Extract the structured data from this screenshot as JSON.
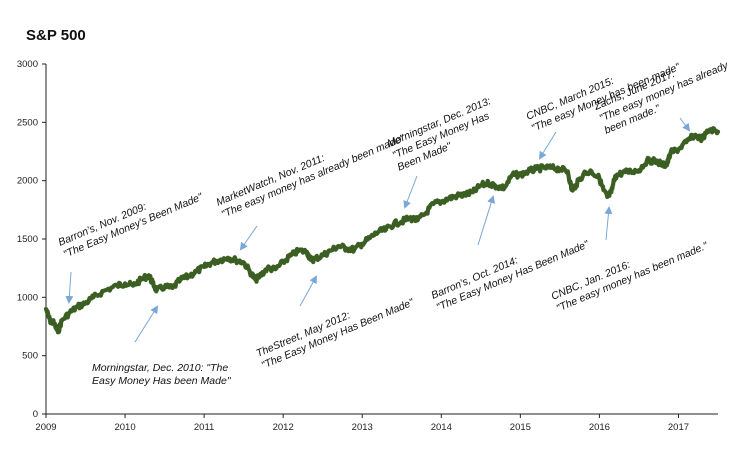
{
  "chart_data": {
    "type": "line",
    "title": "S&P 500",
    "xlabel": "",
    "ylabel": "",
    "xlim": [
      2009.0,
      2017.5
    ],
    "ylim": [
      0,
      3000
    ],
    "y_ticks": [
      0,
      500,
      1000,
      1500,
      2000,
      2500,
      3000
    ],
    "x_ticks": [
      2009,
      2010,
      2011,
      2012,
      2013,
      2014,
      2015,
      2016,
      2017
    ],
    "grid": false,
    "legend": "none",
    "colors": {
      "line": "#3b5e22",
      "arrow": "#7aa7d6",
      "axis": "#222222"
    },
    "series": [
      {
        "x": [
          2009.0,
          2009.05,
          2009.1,
          2009.15,
          2009.2,
          2009.3,
          2009.4,
          2009.5,
          2009.6,
          2009.75,
          2009.9,
          2010.0,
          2010.1,
          2010.2,
          2010.3,
          2010.35,
          2010.4,
          2010.5,
          2010.6,
          2010.7,
          2010.8,
          2010.9,
          2011.0,
          2011.1,
          2011.2,
          2011.3,
          2011.4,
          2011.5,
          2011.6,
          2011.65,
          2011.7,
          2011.8,
          2011.9,
          2012.0,
          2012.1,
          2012.2,
          2012.3,
          2012.35,
          2012.4,
          2012.5,
          2012.6,
          2012.7,
          2012.8,
          2012.9,
          2013.0,
          2013.1,
          2013.2,
          2013.3,
          2013.4,
          2013.5,
          2013.6,
          2013.7,
          2013.8,
          2013.9,
          2014.0,
          2014.1,
          2014.2,
          2014.3,
          2014.4,
          2014.5,
          2014.6,
          2014.7,
          2014.8,
          2014.9,
          2015.0,
          2015.1,
          2015.2,
          2015.3,
          2015.4,
          2015.5,
          2015.6,
          2015.65,
          2015.7,
          2015.8,
          2015.9,
          2016.0,
          2016.05,
          2016.1,
          2016.15,
          2016.2,
          2016.3,
          2016.4,
          2016.5,
          2016.6,
          2016.7,
          2016.8,
          2016.85,
          2016.9,
          2017.0,
          2017.1,
          2017.2,
          2017.3,
          2017.4,
          2017.5
        ],
        "values": [
          900,
          800,
          780,
          700,
          800,
          870,
          920,
          950,
          1000,
          1060,
          1100,
          1120,
          1100,
          1150,
          1190,
          1120,
          1060,
          1090,
          1080,
          1150,
          1180,
          1220,
          1260,
          1300,
          1320,
          1340,
          1320,
          1300,
          1200,
          1150,
          1180,
          1250,
          1240,
          1300,
          1360,
          1400,
          1390,
          1320,
          1330,
          1360,
          1400,
          1440,
          1420,
          1410,
          1460,
          1510,
          1560,
          1580,
          1630,
          1650,
          1680,
          1660,
          1720,
          1800,
          1820,
          1850,
          1870,
          1880,
          1900,
          1960,
          1980,
          1950,
          1940,
          2050,
          2050,
          2080,
          2100,
          2110,
          2110,
          2100,
          2080,
          1920,
          1960,
          2060,
          2080,
          2020,
          1920,
          1860,
          1900,
          2040,
          2070,
          2080,
          2090,
          2170,
          2170,
          2140,
          2130,
          2240,
          2270,
          2330,
          2390,
          2360,
          2440,
          2420
        ]
      }
    ],
    "annotations": [
      {
        "lines": [
          "Barron's, Nov. 2009:",
          "\"The Easy Money's Been Made\""
        ]
      },
      {
        "lines": [
          "MarketWatch, Nov. 2011:",
          "\"The easy money has already been made\""
        ]
      },
      {
        "lines": [
          "Morningstar, Dec. 2013:",
          "\"The Easy Money Has",
          "Been Made\""
        ]
      },
      {
        "lines": [
          "CNBC, March 2015:",
          "\"The easy Money has been made\""
        ]
      },
      {
        "lines": [
          "Zachs, June 2017:",
          "\"The easy money has already",
          "been made.\""
        ]
      },
      {
        "lines": [
          "Morningstar, Dec. 2010: \"The",
          "Easy Money Has been Made\""
        ]
      },
      {
        "lines": [
          "TheStreet, May 2012:",
          "\"The Easy Money Has Been Made\""
        ]
      },
      {
        "lines": [
          "Barron's, Oct. 2014:",
          "\"The Easy Money Has Been Made\""
        ]
      },
      {
        "lines": [
          "CNBC, Jan. 2016:",
          "\"The easy money has been made.\""
        ]
      }
    ]
  }
}
